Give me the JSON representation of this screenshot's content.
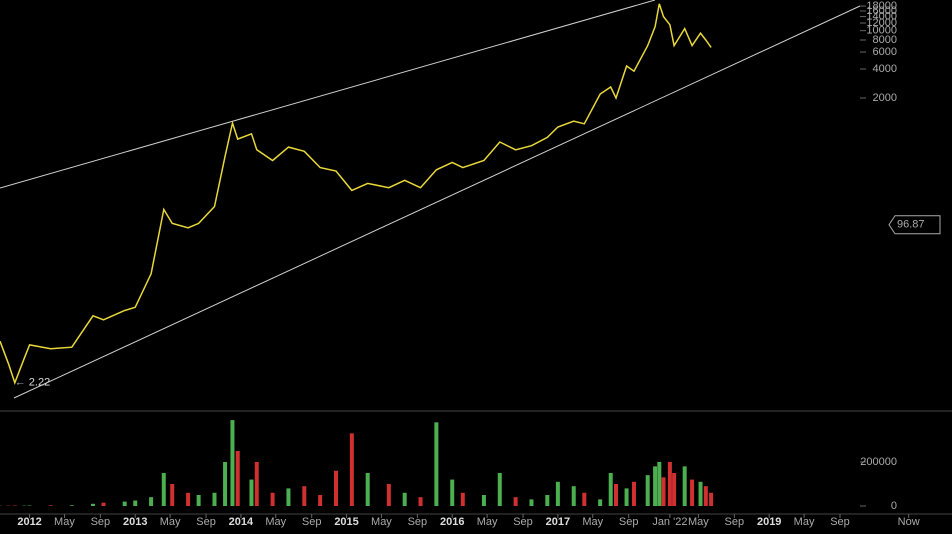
{
  "chart_data": [
    {
      "type": "line",
      "log_scale": true,
      "color": "#e8d83a",
      "x": [
        2011.72,
        2011.8,
        2011.86,
        2011.95,
        2012.0,
        2012.2,
        2012.4,
        2012.6,
        2012.7,
        2012.9,
        2013.0,
        2013.15,
        2013.27,
        2013.35,
        2013.5,
        2013.6,
        2013.75,
        2013.85,
        2013.92,
        2013.97,
        2014.1,
        2014.15,
        2014.3,
        2014.45,
        2014.6,
        2014.75,
        2014.9,
        2015.05,
        2015.2,
        2015.4,
        2015.55,
        2015.7,
        2015.85,
        2016.0,
        2016.1,
        2016.3,
        2016.45,
        2016.6,
        2016.75,
        2016.9,
        2017.0,
        2017.15,
        2017.25,
        2017.4,
        2017.5,
        2017.55,
        2017.65,
        2017.72,
        2017.85,
        2017.92,
        2017.96,
        2018.0,
        2018.06,
        2018.1,
        2018.2,
        2018.27,
        2018.35,
        2018.4,
        2018.45
      ],
      "values": [
        6,
        3.5,
        2.22,
        4,
        5.5,
        5,
        5.2,
        11,
        10,
        12.5,
        13.5,
        30,
        140,
        100,
        90,
        100,
        150,
        500,
        1100,
        750,
        850,
        580,
        450,
        620,
        560,
        380,
        350,
        220,
        260,
        235,
        280,
        235,
        360,
        430,
        380,
        450,
        700,
        580,
        640,
        780,
        1000,
        1150,
        1080,
        2200,
        2600,
        2000,
        4300,
        3800,
        7000,
        11000,
        19000,
        14000,
        11500,
        7000,
        10500,
        7000,
        9400,
        8000,
        6700
      ],
      "xlim": [
        2011.72,
        2020.73
      ],
      "xticks": [
        {
          "value": 2012,
          "label": "2012"
        },
        {
          "value": 2012.33,
          "label": "May"
        },
        {
          "value": 2012.67,
          "label": "Sep"
        },
        {
          "value": 2013,
          "label": "2013"
        },
        {
          "value": 2013.33,
          "label": "May"
        },
        {
          "value": 2013.67,
          "label": "Sep"
        },
        {
          "value": 2014,
          "label": "2014"
        },
        {
          "value": 2014.33,
          "label": "May"
        },
        {
          "value": 2014.67,
          "label": "Sep"
        },
        {
          "value": 2015,
          "label": "2015"
        },
        {
          "value": 2015.33,
          "label": "May"
        },
        {
          "value": 2015.67,
          "label": "Sep"
        },
        {
          "value": 2016,
          "label": "2016"
        },
        {
          "value": 2016.33,
          "label": "May"
        },
        {
          "value": 2016.67,
          "label": "Sep"
        },
        {
          "value": 2017,
          "label": "2017"
        },
        {
          "value": 2017.33,
          "label": "May"
        },
        {
          "value": 2017.67,
          "label": "Sep"
        },
        {
          "value": 2018.06,
          "label": "Jan '22"
        },
        {
          "value": 2018.33,
          "label": "May"
        },
        {
          "value": 2018.67,
          "label": "Sep"
        },
        {
          "value": 2019,
          "label": "2019"
        },
        {
          "value": 2019.33,
          "label": "May"
        },
        {
          "value": 2019.67,
          "label": "Sep"
        },
        {
          "value": 2020.32,
          "label": "Now"
        }
      ],
      "ylim": [
        1.16,
        20800
      ],
      "yticks": [
        2000,
        4000,
        6000,
        8000,
        10000,
        12000,
        14000,
        16000,
        18000
      ],
      "low_label": 2.22,
      "marker": 96.87
    },
    {
      "type": "bar",
      "colors": [
        "#4caf50",
        "#d0302f",
        "#d0302f",
        "#4caf50",
        "#4caf50",
        "#d0302f",
        "#4caf50",
        "#4caf50",
        "#d0302f",
        "#4caf50",
        "#4caf50",
        "#4caf50",
        "#4caf50",
        "#d0302f",
        "#d0302f",
        "#4caf50",
        "#4caf50",
        "#4caf50",
        "#4caf50",
        "#d0302f",
        "#4caf50",
        "#d0302f",
        "#d0302f",
        "#4caf50",
        "#d0302f",
        "#d0302f",
        "#d0302f",
        "#d0302f",
        "#4caf50",
        "#d0302f",
        "#4caf50",
        "#d0302f",
        "#4caf50",
        "#4caf50",
        "#d0302f",
        "#4caf50",
        "#4caf50",
        "#d0302f",
        "#4caf50",
        "#4caf50",
        "#4caf50",
        "#4caf50",
        "#d0302f",
        "#4caf50",
        "#4caf50",
        "#d0302f",
        "#4caf50",
        "#d0302f",
        "#4caf50",
        "#4caf50",
        "#4caf50",
        "#d0302f",
        "#d0302f",
        "#d0302f",
        "#4caf50",
        "#d0302f",
        "#4caf50",
        "#d0302f",
        "#d0302f"
      ],
      "x": [
        2011.72,
        2011.8,
        2011.86,
        2011.95,
        2012.0,
        2012.2,
        2012.4,
        2012.6,
        2012.7,
        2012.9,
        2013.0,
        2013.15,
        2013.27,
        2013.35,
        2013.5,
        2013.6,
        2013.75,
        2013.85,
        2013.92,
        2013.97,
        2014.1,
        2014.15,
        2014.3,
        2014.45,
        2014.6,
        2014.75,
        2014.9,
        2015.05,
        2015.2,
        2015.4,
        2015.55,
        2015.7,
        2015.85,
        2016.0,
        2016.1,
        2016.3,
        2016.45,
        2016.6,
        2016.75,
        2016.9,
        2017.0,
        2017.15,
        2017.25,
        2017.4,
        2017.5,
        2017.55,
        2017.65,
        2017.72,
        2017.85,
        2017.92,
        2017.96,
        2018.0,
        2018.06,
        2018.1,
        2018.2,
        2018.27,
        2018.35,
        2018.4,
        2018.45
      ],
      "values": [
        1000,
        1500,
        2000,
        1500,
        2000,
        3000,
        3000,
        10000,
        15000,
        20000,
        25000,
        40000,
        150000,
        100000,
        60000,
        50000,
        60000,
        200000,
        390000,
        250000,
        120000,
        200000,
        60000,
        80000,
        90000,
        50000,
        160000,
        330000,
        150000,
        100000,
        60000,
        40000,
        380000,
        120000,
        60000,
        50000,
        150000,
        40000,
        30000,
        50000,
        110000,
        90000,
        60000,
        30000,
        150000,
        100000,
        80000,
        110000,
        140000,
        180000,
        200000,
        130000,
        200000,
        150000,
        180000,
        120000,
        110000,
        90000,
        60000
      ],
      "xlim": [
        2011.72,
        2020.73
      ],
      "ylim": [
        0,
        436000
      ],
      "yticks": [
        0,
        200000
      ]
    }
  ]
}
